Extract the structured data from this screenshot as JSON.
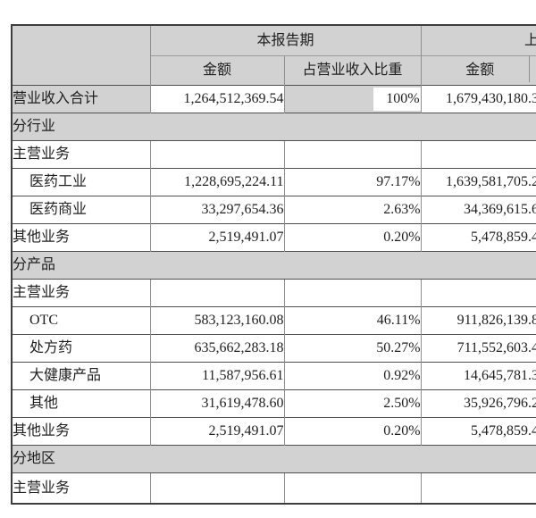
{
  "table": {
    "header": {
      "period_current": "本报告期",
      "period_prior_partial": "上",
      "col_amount": "金额",
      "col_ratio": "占营业收入比重",
      "col_amount_prior": "金额"
    },
    "rows": [
      {
        "label": "营业收入合计",
        "amount": "1,264,512,369.54",
        "ratio": "100%",
        "prior_amount": "1,679,430,180.3",
        "emphasis": true
      },
      {
        "label": "分行业",
        "band": true
      },
      {
        "label": "主营业务",
        "amount": "",
        "ratio": "",
        "prior_amount": ""
      },
      {
        "label": "医药工业",
        "indent": true,
        "amount": "1,228,695,224.11",
        "ratio": "97.17%",
        "prior_amount": "1,639,581,705.2"
      },
      {
        "label": "医药商业",
        "indent": true,
        "amount": "33,297,654.36",
        "ratio": "2.63%",
        "prior_amount": "34,369,615.6"
      },
      {
        "label": "其他业务",
        "amount": "2,519,491.07",
        "ratio": "0.20%",
        "prior_amount": "5,478,859.4"
      },
      {
        "label": "分产品",
        "band": true
      },
      {
        "label": "主营业务",
        "amount": "",
        "ratio": "",
        "prior_amount": ""
      },
      {
        "label": "OTC",
        "indent": true,
        "amount": "583,123,160.08",
        "ratio": "46.11%",
        "prior_amount": "911,826,139.8"
      },
      {
        "label": "处方药",
        "indent": true,
        "amount": "635,662,283.18",
        "ratio": "50.27%",
        "prior_amount": "711,552,603.4"
      },
      {
        "label": "大健康产品",
        "indent": true,
        "amount": "11,587,956.61",
        "ratio": "0.92%",
        "prior_amount": "14,645,781.3"
      },
      {
        "label": "其他",
        "indent": true,
        "amount": "31,619,478.60",
        "ratio": "2.50%",
        "prior_amount": "35,926,796.2"
      },
      {
        "label": "其他业务",
        "amount": "2,519,491.07",
        "ratio": "0.20%",
        "prior_amount": "5,478,859.4"
      },
      {
        "label": "分地区",
        "band": true
      },
      {
        "label": "主营业务",
        "amount": "",
        "ratio": "",
        "prior_amount": "",
        "last": true
      }
    ]
  }
}
